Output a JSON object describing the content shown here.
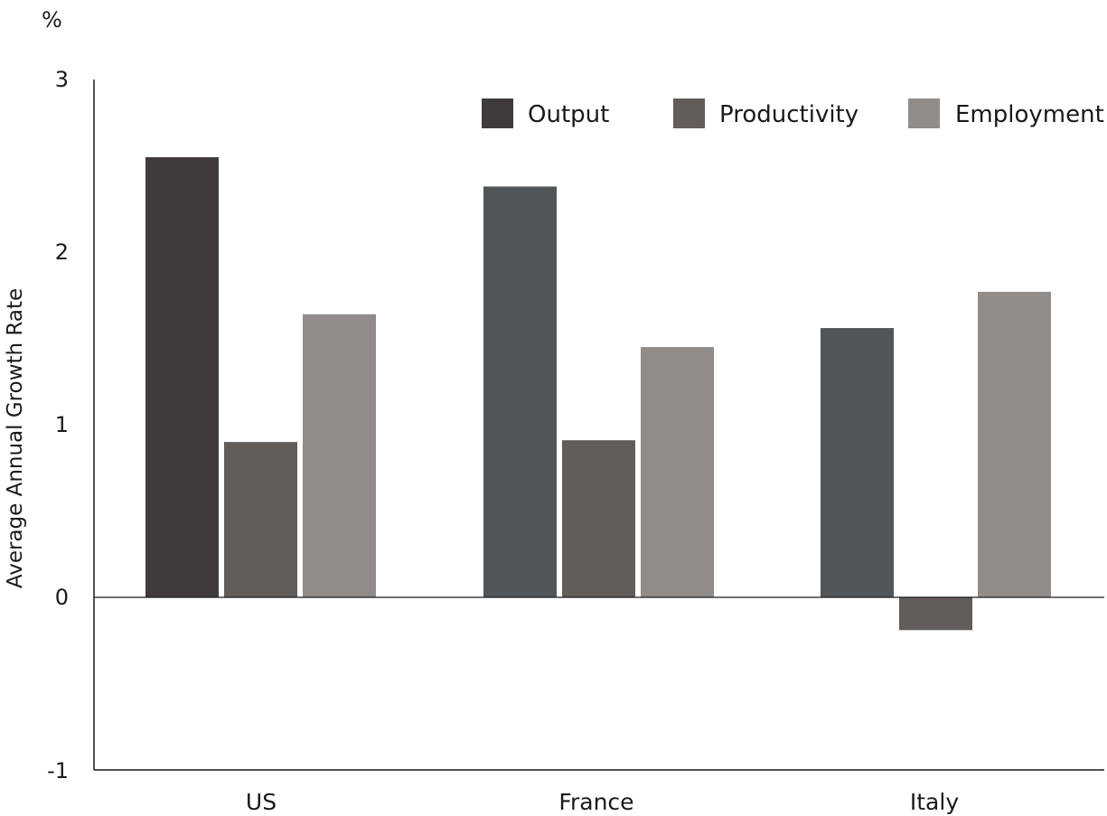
{
  "chart_data": {
    "type": "bar",
    "unit_label": "%",
    "ylabel": "Average Annual Growth Rate",
    "xlabel": "",
    "ylim": [
      -1,
      3
    ],
    "yticks": [
      "3",
      "2",
      "1",
      "0",
      "-1"
    ],
    "categories": [
      "US",
      "France",
      "Italy"
    ],
    "legend_position": "top-right",
    "series": [
      {
        "name": "Output",
        "values": [
          2.55,
          2.38,
          1.56
        ]
      },
      {
        "name": "Productivity",
        "values": [
          0.9,
          0.91,
          -0.19
        ]
      },
      {
        "name": "Employment",
        "values": [
          1.64,
          1.45,
          1.77
        ]
      }
    ],
    "colors": {
      "output_us": "#403b3b",
      "output_other": "#525558",
      "productivity": "#625c5a",
      "employment": "#918c89",
      "axis": "#1a1a1a"
    }
  }
}
